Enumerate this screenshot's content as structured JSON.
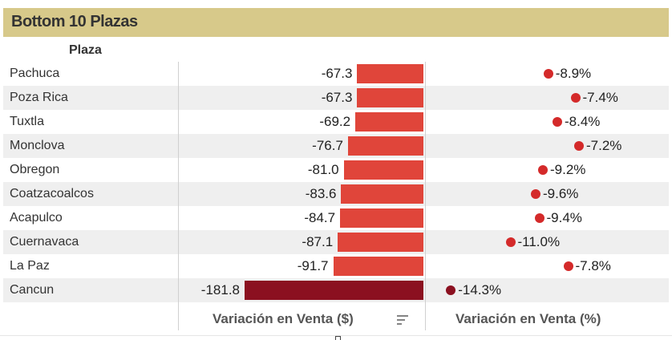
{
  "title": "Bottom 10 Plazas",
  "column_header": "Plaza",
  "footer": {
    "amount_label": "Variación en Venta ($)",
    "pct_label": "Variación en Venta (%)"
  },
  "colors": {
    "title_bg": "#d7c98a",
    "bar_normal": "#e0453a",
    "bar_extreme": "#8b1020",
    "dot_normal": "#d42a2a",
    "dot_extreme": "#8b1020"
  },
  "chart_data": {
    "type": "bar",
    "orientation": "horizontal",
    "categories": [
      "Pachuca",
      "Poza Rica",
      "Tuxtla",
      "Monclova",
      "Obregon",
      "Coatzacoalcos",
      "Acapulco",
      "Cuernavaca",
      "La Paz",
      "Cancun"
    ],
    "series": [
      {
        "name": "Variación en Venta ($)",
        "values": [
          -67.3,
          -67.3,
          -69.2,
          -76.7,
          -81.0,
          -83.6,
          -84.7,
          -87.1,
          -91.7,
          -181.8
        ]
      },
      {
        "name": "Variación en Venta (%)",
        "values": [
          -8.9,
          -7.4,
          -8.4,
          -7.2,
          -9.2,
          -9.6,
          -9.4,
          -11.0,
          -7.8,
          -14.3
        ]
      }
    ],
    "value_labels": [
      "-67.3",
      "-67.3",
      "-69.2",
      "-76.7",
      "-81.0",
      "-83.6",
      "-84.7",
      "-87.1",
      "-91.7",
      "-181.8"
    ],
    "pct_labels": [
      "-8.9%",
      "-7.4%",
      "-8.4%",
      "-7.2%",
      "-9.2%",
      "-9.6%",
      "-9.4%",
      "-11.0%",
      "-7.8%",
      "-14.3%"
    ],
    "grid": false
  }
}
